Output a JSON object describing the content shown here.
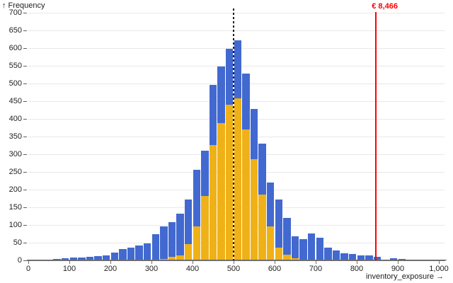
{
  "chart_data": {
    "type": "bar",
    "subtype": "overlaid-histograms",
    "title": "",
    "ylabel": "↑ Frequency",
    "xlabel": "inventory_exposure →",
    "xlim": [
      0,
      1020
    ],
    "ylim": [
      0,
      700
    ],
    "grid": "horizontal",
    "legend": "none",
    "bin_width": 20,
    "bin_starts": [
      0,
      20,
      40,
      60,
      80,
      100,
      120,
      140,
      160,
      180,
      200,
      220,
      240,
      260,
      280,
      300,
      320,
      340,
      360,
      380,
      400,
      420,
      440,
      460,
      480,
      500,
      520,
      540,
      560,
      580,
      600,
      620,
      640,
      660,
      680,
      700,
      720,
      740,
      760,
      780,
      800,
      820,
      840,
      860,
      880,
      900,
      920,
      940,
      960,
      980,
      1000
    ],
    "series": [
      {
        "name": "total-frequency",
        "color": "#4269d0",
        "values": [
          2,
          0,
          0,
          5,
          7,
          9,
          8,
          11,
          13,
          14,
          22,
          32,
          36,
          42,
          48,
          75,
          96,
          108,
          133,
          172,
          256,
          310,
          496,
          549,
          598,
          622,
          529,
          428,
          330,
          220,
          173,
          120,
          69,
          60,
          76,
          64,
          37,
          28,
          21,
          18,
          15,
          14,
          11,
          1,
          7,
          4,
          0,
          0,
          0,
          0,
          3
        ]
      },
      {
        "name": "highlighted-subset",
        "color": "#efb118",
        "values": [
          0,
          0,
          0,
          0,
          0,
          0,
          0,
          0,
          0,
          0,
          0,
          0,
          0,
          0,
          0,
          0,
          5,
          10,
          15,
          46,
          97,
          183,
          327,
          389,
          440,
          459,
          371,
          286,
          186,
          96,
          37,
          16,
          6,
          0,
          0,
          0,
          0,
          0,
          0,
          0,
          0,
          0,
          0,
          0,
          0,
          0,
          0,
          0,
          0,
          0,
          0
        ]
      }
    ],
    "x_ticks": [
      {
        "v": 0,
        "label": "0"
      },
      {
        "v": 100,
        "label": "100"
      },
      {
        "v": 200,
        "label": "200"
      },
      {
        "v": 300,
        "label": "300"
      },
      {
        "v": 400,
        "label": "400"
      },
      {
        "v": 500,
        "label": "500"
      },
      {
        "v": 600,
        "label": "600"
      },
      {
        "v": 700,
        "label": "700"
      },
      {
        "v": 800,
        "label": "800"
      },
      {
        "v": 900,
        "label": "900"
      },
      {
        "v": 1000,
        "label": "1,000"
      }
    ],
    "y_ticks": [
      {
        "v": 0,
        "label": "0"
      },
      {
        "v": 50,
        "label": "50"
      },
      {
        "v": 100,
        "label": "100"
      },
      {
        "v": 150,
        "label": "150"
      },
      {
        "v": 200,
        "label": "200"
      },
      {
        "v": 250,
        "label": "250"
      },
      {
        "v": 300,
        "label": "300"
      },
      {
        "v": 350,
        "label": "350"
      },
      {
        "v": 400,
        "label": "400"
      },
      {
        "v": 450,
        "label": "450"
      },
      {
        "v": 500,
        "label": "500"
      },
      {
        "v": 550,
        "label": "550"
      },
      {
        "v": 600,
        "label": "600"
      },
      {
        "v": 650,
        "label": "650"
      },
      {
        "v": 700,
        "label": "700"
      }
    ],
    "markers": [
      {
        "name": "median-line",
        "style": "dashed",
        "x": 500,
        "color": "#1a1a1a",
        "label": ""
      },
      {
        "name": "threshold-line",
        "style": "solid",
        "x": 847,
        "color": "#ff0000",
        "label": "€ 8,466"
      }
    ],
    "colors": {
      "background": "#ffffff",
      "gridline": "#e8e8e8",
      "axis": "#6e6e6e",
      "tick_text": "#222222"
    }
  }
}
